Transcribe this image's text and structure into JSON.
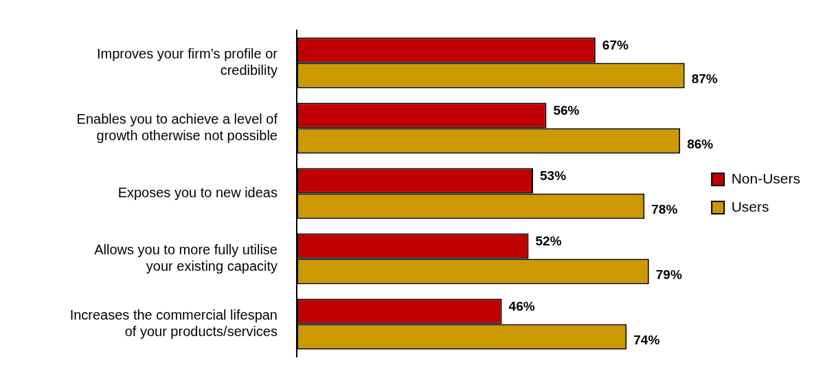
{
  "chart_data": {
    "type": "bar",
    "orientation": "horizontal",
    "categories": [
      "Improves your firm’s profile or credibility",
      "Enables you to achieve a level of growth otherwise not possible",
      "Exposes you to new ideas",
      "Allows you to more fully utilise your existing capacity",
      "Increases the commercial lifespan of your products/services"
    ],
    "series": [
      {
        "name": "Non-Users",
        "color": "#c00000",
        "values": [
          67,
          56,
          53,
          52,
          46
        ],
        "value_labels": [
          "67%",
          "56%",
          "53%",
          "52%",
          "46%"
        ]
      },
      {
        "name": "Users",
        "color": "#cc9900",
        "values": [
          87,
          86,
          78,
          79,
          74
        ],
        "value_labels": [
          "87%",
          "86%",
          "78%",
          "79%",
          "74%"
        ]
      }
    ],
    "legend": "right",
    "tick_labels": "y"
  }
}
